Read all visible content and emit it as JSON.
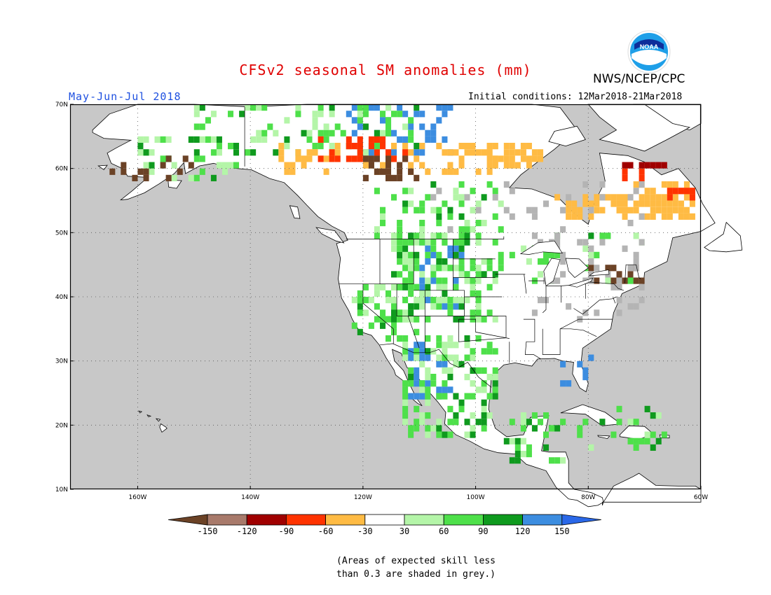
{
  "title": "CFSv2 seasonal SM anomalies (mm)",
  "season": "May-Jun-Jul 2018",
  "initial_conditions": "Initial conditions: 12Mar2018-21Mar2018",
  "agency": "NWS/NCEP/CPC",
  "logo_text": "NOAA",
  "map": {
    "projection": "equirectangular",
    "lon_range": [
      -172,
      -60
    ],
    "lat_range": [
      10,
      70
    ],
    "ocean_color": "#c8c8c8",
    "land_color": "#ffffff",
    "lat_ticks": [
      {
        "value": 70,
        "label": "70N"
      },
      {
        "value": 60,
        "label": "60N"
      },
      {
        "value": 50,
        "label": "50N"
      },
      {
        "value": 40,
        "label": "40N"
      },
      {
        "value": 30,
        "label": "30N"
      },
      {
        "value": 20,
        "label": "20N"
      },
      {
        "value": 10,
        "label": "10N"
      }
    ],
    "lon_ticks": [
      {
        "value": -160,
        "label": "160W"
      },
      {
        "value": -140,
        "label": "140W"
      },
      {
        "value": -120,
        "label": "120W"
      },
      {
        "value": -100,
        "label": "100W"
      },
      {
        "value": -80,
        "label": "80W"
      },
      {
        "value": -60,
        "label": "60W"
      }
    ]
  },
  "legend": {
    "labels": [
      "-150",
      "-120",
      "-90",
      "-60",
      "-30",
      "30",
      "60",
      "90",
      "120",
      "150"
    ],
    "colors": [
      "#6b4226",
      "#a87a6b",
      "#a00000",
      "#ff3300",
      "#ffbb44",
      "#ffffff",
      "#b4f5a8",
      "#4ee04a",
      "#0f9a1e",
      "#3c8de0",
      "#2a68e8"
    ]
  },
  "note": {
    "line1": "(Areas of expected skill less",
    "line2": "than 0.3 are shaded in grey.)"
  },
  "chart_data": {
    "type": "heatmap",
    "title": "CFSv2 seasonal SM anomalies (mm)",
    "subtitle": "May-Jun-Jul 2018",
    "units": "mm",
    "levels": [
      -150,
      -120,
      -90,
      -60,
      -30,
      30,
      60,
      90,
      120,
      150
    ],
    "grey_meaning": "Areas of expected skill less than 0.3 are shaded in grey.",
    "cell_size_deg": 1,
    "regions": [
      {
        "lon": [
          -123,
          -104
        ],
        "lat": [
          62,
          70
        ],
        "cat": "blue",
        "p": 0.35
      },
      {
        "lon": [
          -150,
          -110
        ],
        "lat": [
          62,
          70
        ],
        "cat": "green",
        "p": 0.28
      },
      {
        "lon": [
          -135,
          -95
        ],
        "lat": [
          59,
          64
        ],
        "cat": "orange",
        "p": 0.35
      },
      {
        "lon": [
          -128,
          -112
        ],
        "lat": [
          61,
          65
        ],
        "cat": "red",
        "p": 0.3
      },
      {
        "lon": [
          -120,
          -110
        ],
        "lat": [
          58,
          62
        ],
        "cat": "brown",
        "p": 0.55
      },
      {
        "lon": [
          -98,
          -88
        ],
        "lat": [
          60,
          64
        ],
        "cat": "orange",
        "p": 0.55
      },
      {
        "lon": [
          -86,
          -72
        ],
        "lat": [
          52,
          56
        ],
        "cat": "orange",
        "p": 0.6
      },
      {
        "lon": [
          -72,
          -61
        ],
        "lat": [
          52,
          58
        ],
        "cat": "orange",
        "p": 0.65
      },
      {
        "lon": [
          -74,
          -68
        ],
        "lat": [
          58,
          60
        ],
        "cat": "red",
        "p": 0.45
      },
      {
        "lon": [
          -74,
          -66
        ],
        "lat": [
          60,
          61
        ],
        "cat": "darkred",
        "p": 0.7
      },
      {
        "lon": [
          -66,
          -61
        ],
        "lat": [
          55,
          57
        ],
        "cat": "red",
        "p": 0.45
      },
      {
        "lon": [
          -118,
          -95
        ],
        "lat": [
          48,
          58
        ],
        "cat": "green",
        "p": 0.25
      },
      {
        "lon": [
          -110,
          -100
        ],
        "lat": [
          38,
          49
        ],
        "cat": "blue",
        "p": 0.25
      },
      {
        "lon": [
          -115,
          -96
        ],
        "lat": [
          36,
          50
        ],
        "cat": "green",
        "p": 0.45
      },
      {
        "lon": [
          -122,
          -110
        ],
        "lat": [
          33,
          42
        ],
        "cat": "green",
        "p": 0.35
      },
      {
        "lon": [
          -112,
          -104
        ],
        "lat": [
          24,
          33
        ],
        "cat": "blue",
        "p": 0.3
      },
      {
        "lon": [
          -113,
          -96
        ],
        "lat": [
          18,
          34
        ],
        "cat": "green",
        "p": 0.4
      },
      {
        "lon": [
          -96,
          -84
        ],
        "lat": [
          13,
          22
        ],
        "cat": "green",
        "p": 0.3
      },
      {
        "lon": [
          -82,
          -66
        ],
        "lat": [
          16,
          23
        ],
        "cat": "green",
        "p": 0.2
      },
      {
        "lon": [
          -85,
          -78
        ],
        "lat": [
          26,
          31
        ],
        "cat": "blue",
        "p": 0.15
      },
      {
        "lon": [
          -100,
          -70
        ],
        "lat": [
          42,
          50
        ],
        "cat": "green",
        "p": 0.15
      },
      {
        "lon": [
          -80,
          -70
        ],
        "lat": [
          42,
          45
        ],
        "cat": "brown",
        "p": 0.25
      },
      {
        "lon": [
          -160,
          -140
        ],
        "lat": [
          58,
          65
        ],
        "cat": "green",
        "p": 0.2
      },
      {
        "lon": [
          -165,
          -150
        ],
        "lat": [
          58,
          62
        ],
        "cat": "brown",
        "p": 0.2
      },
      {
        "lon": [
          -90,
          -70
        ],
        "lat": [
          36,
          50
        ],
        "cat": "grey",
        "p": 0.15
      },
      {
        "lon": [
          -110,
          -70
        ],
        "lat": [
          50,
          58
        ],
        "cat": "grey",
        "p": 0.08
      }
    ]
  }
}
